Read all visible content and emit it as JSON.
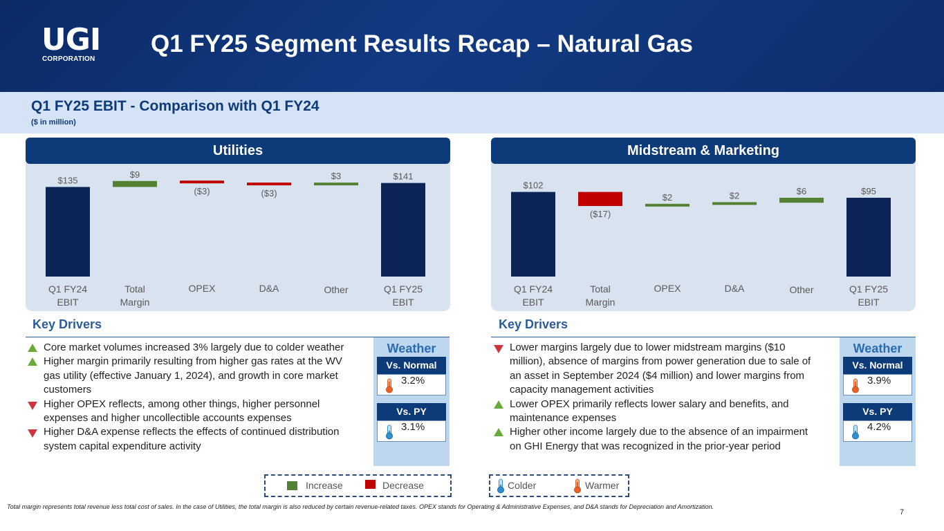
{
  "header": {
    "logo_main": "UGI",
    "logo_sub": "CORPORATION",
    "title": "Q1 FY25 Segment Results Recap – Natural Gas"
  },
  "subheader": {
    "title": "Q1 FY25 EBIT - Comparison with Q1 FY24",
    "units": "($ in million)"
  },
  "colors": {
    "total": "#0c2456",
    "increase": "#548235",
    "decrease": "#c00000",
    "header": "#0d3a78"
  },
  "chart_data": [
    {
      "type": "bar",
      "subtype": "waterfall",
      "title": "Utilities",
      "categories": [
        "Q1 FY24 EBIT",
        "Total Margin",
        "OPEX",
        "D&A",
        "Other",
        "Q1 FY25 EBIT"
      ],
      "values": [
        135,
        9,
        -3,
        -3,
        3,
        141
      ],
      "labels": [
        "$135",
        "$9",
        "($3)",
        "($3)",
        "$3",
        "$141"
      ],
      "kinds": [
        "total",
        "increase",
        "decrease",
        "decrease",
        "increase",
        "total"
      ]
    },
    {
      "type": "bar",
      "subtype": "waterfall",
      "title": "Midstream & Marketing",
      "categories": [
        "Q1 FY24 EBIT",
        "Total Margin",
        "OPEX",
        "D&A",
        "Other",
        "Q1 FY25 EBIT"
      ],
      "values": [
        102,
        -17,
        2,
        2,
        6,
        95
      ],
      "labels": [
        "$102",
        "($17)",
        "$2",
        "$2",
        "$6",
        "$95"
      ],
      "kinds": [
        "total",
        "decrease",
        "increase",
        "increase",
        "increase",
        "total"
      ]
    }
  ],
  "key_drivers_label": "Key Drivers",
  "utilities_drivers": [
    {
      "dir": "up",
      "text": "Core market volumes increased 3% largely due to colder weather"
    },
    {
      "dir": "up",
      "text": "Higher margin primarily resulting from higher gas rates at the WV gas utility (effective January 1, 2024), and growth in core market customers"
    },
    {
      "dir": "down",
      "text": "Higher OPEX reflects, among other things, higher personnel expenses and higher uncollectible accounts expenses"
    },
    {
      "dir": "down",
      "text": "Higher D&A expense reflects the effects of continued distribution system capital expenditure activity"
    }
  ],
  "midstream_drivers": [
    {
      "dir": "down",
      "text": "Lower margins largely due to lower midstream margins ($10 million), absence of margins from power generation due to sale of an asset in September 2024 ($4 million) and lower margins from capacity management activities"
    },
    {
      "dir": "up",
      "text": "Lower OPEX primarily reflects lower salary and benefits, and maintenance expenses"
    },
    {
      "dir": "up",
      "text": "Higher other income largely due to the absence of an impairment on GHI Energy that was recognized in the prior-year period"
    }
  ],
  "weather_utilities": {
    "title": "Weather",
    "vs_normal_label": "Vs. Normal",
    "vs_normal_value": "3.2%",
    "vs_normal_icon": "warmer-thermometer-icon",
    "vs_py_label": "Vs. PY",
    "vs_py_value": "3.1%",
    "vs_py_icon": "colder-thermometer-icon"
  },
  "weather_midstream": {
    "title": "Weather",
    "vs_normal_label": "Vs. Normal",
    "vs_normal_value": "3.9%",
    "vs_normal_icon": "warmer-thermometer-icon",
    "vs_py_label": "Vs. PY",
    "vs_py_value": "4.2%",
    "vs_py_icon": "colder-thermometer-icon"
  },
  "legend": {
    "increase": "Increase",
    "decrease": "Decrease",
    "colder": "Colder",
    "warmer": "Warmer"
  },
  "footnote": "Total margin represents total revenue less total cost of sales. In the case of Utilities, the total margin is also reduced by certain revenue-related taxes. OPEX stands for Operating & Administrative Expenses, and D&A stands for Depreciation and Amortization.",
  "page_number": "7"
}
